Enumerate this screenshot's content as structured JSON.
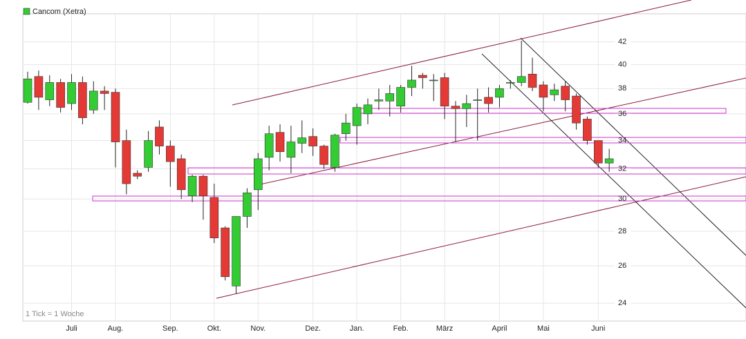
{
  "chart_data": {
    "type": "candlestick",
    "name": "Cancom (Xetra)",
    "note": "1 Tick = 1 Woche",
    "categories": [
      null,
      null,
      null,
      null,
      "Juli",
      null,
      null,
      null,
      "Aug.",
      null,
      null,
      null,
      null,
      "Sep.",
      null,
      null,
      null,
      "Okt.",
      null,
      null,
      null,
      "Nov.",
      null,
      null,
      null,
      null,
      "Dez.",
      null,
      null,
      null,
      "Jan.",
      null,
      null,
      null,
      "Feb.",
      null,
      null,
      null,
      "März",
      null,
      null,
      null,
      null,
      "April",
      null,
      null,
      null,
      "Mai",
      null,
      null,
      null,
      null,
      "Juni",
      null
    ],
    "open": [
      36.9,
      39.0,
      37.1,
      38.5,
      36.8,
      38.5,
      36.3,
      37.8,
      37.7,
      34.0,
      31.7,
      32.1,
      35.0,
      33.6,
      32.7,
      30.2,
      31.5,
      30.1,
      28.2,
      24.9,
      28.9,
      30.6,
      32.8,
      34.6,
      32.8,
      33.8,
      34.3,
      33.6,
      32.1,
      34.5,
      35.1,
      36.0,
      37.0,
      37.0,
      36.6,
      38.1,
      39.1,
      38.7,
      38.9,
      36.6,
      36.4,
      37.1,
      37.3,
      37.3,
      38.5,
      38.5,
      39.2,
      38.3,
      37.5,
      38.2,
      37.4,
      35.6,
      34.0,
      32.4
    ],
    "high": [
      39.4,
      39.5,
      39.1,
      38.8,
      39.2,
      39.0,
      38.6,
      38.2,
      38.0,
      34.8,
      31.9,
      34.7,
      35.5,
      34.0,
      33.0,
      31.6,
      31.6,
      31.0,
      28.3,
      28.9,
      30.7,
      33.1,
      35.1,
      35.2,
      35.1,
      35.5,
      34.9,
      33.7,
      34.5,
      36.0,
      36.8,
      37.2,
      38.0,
      38.3,
      38.3,
      39.9,
      39.3,
      39.2,
      39.3,
      37.0,
      37.5,
      38.0,
      38.1,
      38.3,
      38.7,
      42.1,
      40.6,
      38.6,
      38.4,
      38.6,
      37.6,
      35.8,
      34.0,
      33.4
    ],
    "low": [
      36.8,
      36.3,
      36.6,
      36.1,
      36.3,
      35.2,
      36.0,
      36.3,
      32.1,
      30.3,
      31.3,
      31.8,
      33.0,
      30.8,
      30.0,
      29.8,
      28.7,
      27.3,
      25.2,
      24.5,
      28.2,
      29.3,
      31.9,
      32.5,
      31.7,
      33.1,
      32.9,
      32.0,
      31.8,
      34.0,
      33.7,
      35.2,
      36.3,
      35.8,
      36.1,
      37.4,
      38.0,
      37.0,
      35.6,
      33.9,
      35.0,
      34.0,
      36.1,
      36.5,
      38.0,
      38.2,
      37.8,
      36.2,
      37.0,
      36.2,
      34.8,
      33.7,
      32.1,
      31.8
    ],
    "close": [
      38.8,
      37.3,
      38.5,
      36.5,
      38.5,
      35.7,
      37.8,
      37.6,
      33.9,
      31.0,
      31.5,
      34.0,
      33.6,
      32.5,
      30.6,
      31.5,
      30.2,
      27.6,
      25.4,
      28.9,
      30.4,
      32.7,
      34.5,
      33.2,
      33.9,
      34.2,
      33.6,
      32.3,
      34.4,
      35.3,
      36.5,
      36.7,
      37.1,
      37.6,
      38.1,
      38.7,
      38.9,
      38.7,
      36.6,
      36.4,
      36.8,
      37.1,
      36.8,
      38.0,
      38.5,
      39.0,
      38.1,
      37.3,
      37.9,
      37.1,
      35.3,
      34.0,
      32.4,
      32.7
    ],
    "up_color": "#33cc33",
    "down_color": "#e53935",
    "ylim": [
      23.1,
      44.6
    ],
    "yticks": [
      24,
      26,
      28,
      30,
      32,
      34,
      36,
      38,
      40,
      42
    ],
    "log": true,
    "grid": true
  }
}
